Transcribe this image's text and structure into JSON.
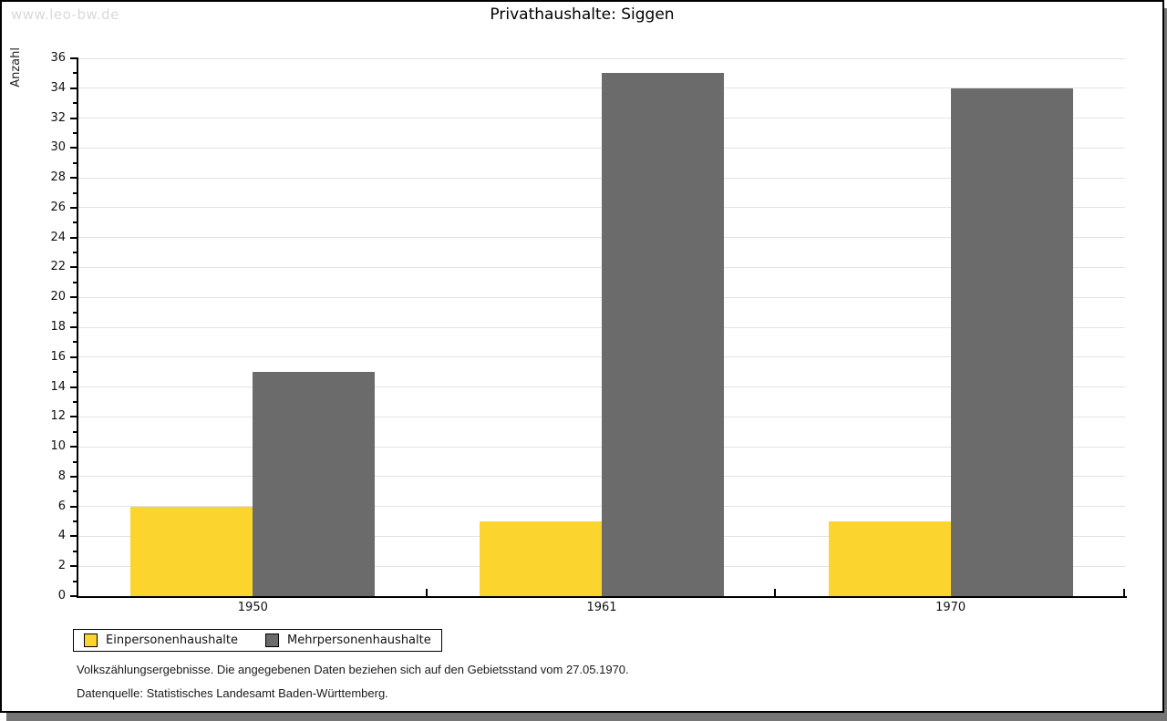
{
  "watermark": "www.leo-bw.de",
  "chart_data": {
    "type": "bar",
    "title": "Privathaushalte: Siggen",
    "ylabel": "Anzahl",
    "xlabel": "",
    "categories": [
      "1950",
      "1961",
      "1970"
    ],
    "series": [
      {
        "name": "Einpersonenhaushalte",
        "color": "#fcd42e",
        "values": [
          6,
          5,
          5
        ]
      },
      {
        "name": "Mehrpersonenhaushalte",
        "color": "#6b6b6b",
        "values": [
          15,
          35,
          34
        ]
      }
    ],
    "ylim": [
      0,
      36
    ],
    "ytick_step": 2,
    "minor_tick_step": 1,
    "grid": true,
    "legend_position": "bottom-left"
  },
  "footnotes": {
    "line1": "Volkszählungsergebnisse. Die angegebenen Daten beziehen sich auf den Gebietsstand vom 27.05.1970.",
    "line2": "Datenquelle: Statistisches Landesamt Baden-Württemberg."
  }
}
